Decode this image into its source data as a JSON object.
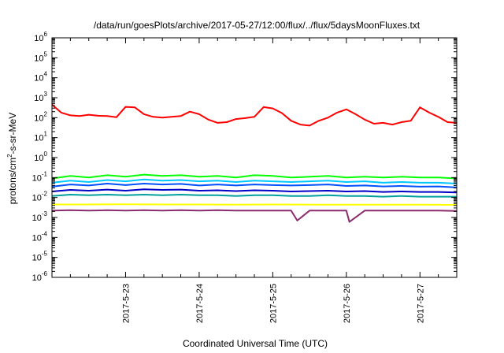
{
  "chart_data": {
    "type": "line",
    "title": "/data/run/goesPlots/archive/2017-05-27/12:00/flux/../flux/5daysMoonFluxes.txt",
    "xlabel": "Coordinated Universal Time (UTC)",
    "ylabel": {
      "base": "protons/cm",
      "sup": "2",
      "rest": "-s-sr-MeV"
    },
    "y_scale": "log",
    "ylim": [
      1e-06,
      1000000.0
    ],
    "y_ticks": [
      {
        "base": "10",
        "exp": "-6"
      },
      {
        "base": "10",
        "exp": "-5"
      },
      {
        "base": "10",
        "exp": "-4"
      },
      {
        "base": "10",
        "exp": "-3"
      },
      {
        "base": "10",
        "exp": "-2"
      },
      {
        "base": "10",
        "exp": "-1"
      },
      {
        "base": "10",
        "exp": "0"
      },
      {
        "base": "10",
        "exp": "1"
      },
      {
        "base": "10",
        "exp": "2"
      },
      {
        "base": "10",
        "exp": "3"
      },
      {
        "base": "10",
        "exp": "4"
      },
      {
        "base": "10",
        "exp": "5"
      },
      {
        "base": "10",
        "exp": "6"
      }
    ],
    "xlim": [
      "2017-05-22 00:00",
      "2017-05-27 12:00"
    ],
    "x_ticks": [
      "2017-5-23",
      "2017-5-24",
      "2017-5-25",
      "2017-5-26",
      "2017-5-27"
    ],
    "grid": false,
    "legend": "none",
    "series": [
      {
        "color": "#ff0000",
        "x": [
          "2017-05-22 00:00",
          "2017-05-22 03:00",
          "2017-05-22 06:00",
          "2017-05-22 09:00",
          "2017-05-22 12:00",
          "2017-05-22 15:00",
          "2017-05-22 18:00",
          "2017-05-22 21:00",
          "2017-05-23 00:00",
          "2017-05-23 03:00",
          "2017-05-23 06:00",
          "2017-05-23 09:00",
          "2017-05-23 12:00",
          "2017-05-23 15:00",
          "2017-05-23 18:00",
          "2017-05-23 21:00",
          "2017-05-24 00:00",
          "2017-05-24 03:00",
          "2017-05-24 06:00",
          "2017-05-24 09:00",
          "2017-05-24 12:00",
          "2017-05-24 15:00",
          "2017-05-24 18:00",
          "2017-05-24 21:00",
          "2017-05-25 00:00",
          "2017-05-25 03:00",
          "2017-05-25 06:00",
          "2017-05-25 09:00",
          "2017-05-25 12:00",
          "2017-05-25 15:00",
          "2017-05-25 18:00",
          "2017-05-25 21:00",
          "2017-05-26 00:00",
          "2017-05-26 03:00",
          "2017-05-26 06:00",
          "2017-05-26 09:00",
          "2017-05-26 12:00",
          "2017-05-26 15:00",
          "2017-05-26 18:00",
          "2017-05-26 21:00",
          "2017-05-27 00:00",
          "2017-05-27 03:00",
          "2017-05-27 06:00",
          "2017-05-27 09:00",
          "2017-05-27 12:00"
        ],
        "y": [
          450,
          180,
          130,
          120,
          140,
          125,
          120,
          105,
          350,
          330,
          150,
          110,
          100,
          110,
          120,
          200,
          150,
          80,
          55,
          60,
          85,
          95,
          110,
          340,
          290,
          170,
          70,
          45,
          40,
          70,
          100,
          180,
          260,
          150,
          80,
          50,
          55,
          45,
          60,
          70,
          330,
          180,
          110,
          60,
          55
        ]
      },
      {
        "color": "#00ff00",
        "x": [
          "2017-05-22 00:00",
          "2017-05-22 06:00",
          "2017-05-22 12:00",
          "2017-05-22 18:00",
          "2017-05-23 00:00",
          "2017-05-23 06:00",
          "2017-05-23 12:00",
          "2017-05-23 18:00",
          "2017-05-24 00:00",
          "2017-05-24 06:00",
          "2017-05-24 12:00",
          "2017-05-24 18:00",
          "2017-05-25 00:00",
          "2017-05-25 06:00",
          "2017-05-25 12:00",
          "2017-05-25 18:00",
          "2017-05-26 00:00",
          "2017-05-26 06:00",
          "2017-05-26 12:00",
          "2017-05-26 18:00",
          "2017-05-27 00:00",
          "2017-05-27 06:00",
          "2017-05-27 12:00"
        ],
        "y": [
          0.09,
          0.12,
          0.1,
          0.13,
          0.11,
          0.14,
          0.12,
          0.13,
          0.11,
          0.12,
          0.1,
          0.13,
          0.12,
          0.1,
          0.11,
          0.12,
          0.1,
          0.11,
          0.1,
          0.11,
          0.1,
          0.1,
          0.09
        ]
      },
      {
        "color": "#00c8ff",
        "x": [
          "2017-05-22 00:00",
          "2017-05-22 06:00",
          "2017-05-22 12:00",
          "2017-05-22 18:00",
          "2017-05-23 00:00",
          "2017-05-23 06:00",
          "2017-05-23 12:00",
          "2017-05-23 18:00",
          "2017-05-24 00:00",
          "2017-05-24 06:00",
          "2017-05-24 12:00",
          "2017-05-24 18:00",
          "2017-05-25 00:00",
          "2017-05-25 06:00",
          "2017-05-25 12:00",
          "2017-05-25 18:00",
          "2017-05-26 00:00",
          "2017-05-26 06:00",
          "2017-05-26 12:00",
          "2017-05-26 18:00",
          "2017-05-27 00:00",
          "2017-05-27 06:00",
          "2017-05-27 12:00"
        ],
        "y": [
          0.055,
          0.07,
          0.06,
          0.075,
          0.065,
          0.08,
          0.07,
          0.075,
          0.065,
          0.07,
          0.06,
          0.07,
          0.065,
          0.06,
          0.065,
          0.07,
          0.06,
          0.065,
          0.055,
          0.06,
          0.055,
          0.055,
          0.05
        ]
      },
      {
        "color": "#0050ff",
        "x": [
          "2017-05-22 00:00",
          "2017-05-22 06:00",
          "2017-05-22 12:00",
          "2017-05-22 18:00",
          "2017-05-23 00:00",
          "2017-05-23 06:00",
          "2017-05-23 12:00",
          "2017-05-23 18:00",
          "2017-05-24 00:00",
          "2017-05-24 06:00",
          "2017-05-24 12:00",
          "2017-05-24 18:00",
          "2017-05-25 00:00",
          "2017-05-25 06:00",
          "2017-05-25 12:00",
          "2017-05-25 18:00",
          "2017-05-26 00:00",
          "2017-05-26 06:00",
          "2017-05-26 12:00",
          "2017-05-26 18:00",
          "2017-05-27 00:00",
          "2017-05-27 06:00",
          "2017-05-27 12:00"
        ],
        "y": [
          0.035,
          0.045,
          0.04,
          0.05,
          0.042,
          0.05,
          0.045,
          0.048,
          0.04,
          0.045,
          0.04,
          0.045,
          0.042,
          0.04,
          0.042,
          0.045,
          0.038,
          0.04,
          0.036,
          0.038,
          0.035,
          0.036,
          0.032
        ]
      },
      {
        "color": "#0000c8",
        "x": [
          "2017-05-22 00:00",
          "2017-05-22 06:00",
          "2017-05-22 12:00",
          "2017-05-22 18:00",
          "2017-05-23 00:00",
          "2017-05-23 06:00",
          "2017-05-23 12:00",
          "2017-05-23 18:00",
          "2017-05-24 00:00",
          "2017-05-24 06:00",
          "2017-05-24 12:00",
          "2017-05-24 18:00",
          "2017-05-25 00:00",
          "2017-05-25 06:00",
          "2017-05-25 12:00",
          "2017-05-25 18:00",
          "2017-05-26 00:00",
          "2017-05-26 06:00",
          "2017-05-26 12:00",
          "2017-05-26 18:00",
          "2017-05-27 00:00",
          "2017-05-27 06:00",
          "2017-05-27 12:00"
        ],
        "y": [
          0.02,
          0.024,
          0.022,
          0.025,
          0.022,
          0.026,
          0.024,
          0.025,
          0.022,
          0.023,
          0.021,
          0.023,
          0.022,
          0.02,
          0.021,
          0.022,
          0.02,
          0.021,
          0.019,
          0.02,
          0.019,
          0.019,
          0.018
        ]
      },
      {
        "color": "#00a0a0",
        "x": [
          "2017-05-22 00:00",
          "2017-05-22 06:00",
          "2017-05-22 12:00",
          "2017-05-22 18:00",
          "2017-05-23 00:00",
          "2017-05-23 06:00",
          "2017-05-23 12:00",
          "2017-05-23 18:00",
          "2017-05-24 00:00",
          "2017-05-24 06:00",
          "2017-05-24 12:00",
          "2017-05-24 18:00",
          "2017-05-25 00:00",
          "2017-05-25 06:00",
          "2017-05-25 12:00",
          "2017-05-25 18:00",
          "2017-05-26 00:00",
          "2017-05-26 06:00",
          "2017-05-26 12:00",
          "2017-05-26 18:00",
          "2017-05-27 00:00",
          "2017-05-27 06:00",
          "2017-05-27 12:00"
        ],
        "y": [
          0.012,
          0.014,
          0.013,
          0.014,
          0.013,
          0.014,
          0.013,
          0.014,
          0.013,
          0.013,
          0.012,
          0.013,
          0.013,
          0.012,
          0.012,
          0.013,
          0.012,
          0.012,
          0.011,
          0.012,
          0.011,
          0.011,
          0.011
        ]
      },
      {
        "color": "#ffff00",
        "x": [
          "2017-05-22 00:00",
          "2017-05-22 12:00",
          "2017-05-23 00:00",
          "2017-05-23 12:00",
          "2017-05-24 00:00",
          "2017-05-24 12:00",
          "2017-05-25 00:00",
          "2017-05-25 12:00",
          "2017-05-26 00:00",
          "2017-05-26 12:00",
          "2017-05-27 00:00",
          "2017-05-27 12:00"
        ],
        "y": [
          0.0045,
          0.0045,
          0.0046,
          0.0045,
          0.0045,
          0.0044,
          0.0045,
          0.0044,
          0.0044,
          0.0044,
          0.0044,
          0.0043
        ]
      },
      {
        "color": "#8b2c6e",
        "x": [
          "2017-05-22 00:00",
          "2017-05-22 06:00",
          "2017-05-22 12:00",
          "2017-05-22 18:00",
          "2017-05-23 00:00",
          "2017-05-23 06:00",
          "2017-05-23 12:00",
          "2017-05-23 18:00",
          "2017-05-24 00:00",
          "2017-05-24 06:00",
          "2017-05-24 12:00",
          "2017-05-24 18:00",
          "2017-05-25 00:00",
          "2017-05-25 06:00",
          "2017-05-25 08:00",
          "2017-05-25 12:00",
          "2017-05-25 18:00",
          "2017-05-26 00:00",
          "2017-05-26 01:00",
          "2017-05-26 06:00",
          "2017-05-26 12:00",
          "2017-05-26 18:00",
          "2017-05-27 00:00",
          "2017-05-27 06:00",
          "2017-05-27 12:00"
        ],
        "y": [
          0.0022,
          0.0023,
          0.0022,
          0.0023,
          0.0022,
          0.0023,
          0.0022,
          0.0023,
          0.0022,
          0.0023,
          0.0022,
          0.0022,
          0.0022,
          0.0022,
          0.0007,
          0.0022,
          0.0022,
          0.0022,
          0.0006,
          0.0022,
          0.0022,
          0.0022,
          0.0022,
          0.0022,
          0.0021
        ]
      }
    ]
  }
}
